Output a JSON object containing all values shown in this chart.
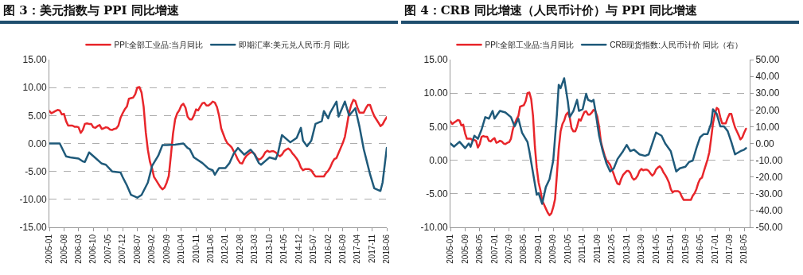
{
  "chart_data": [
    {
      "type": "line",
      "title": "图 3：美元指数与 PPI 同比增速",
      "legend": "top",
      "grid": "y",
      "xlim": [
        "2005-01",
        "2018-06"
      ],
      "xticks": [
        "2005-01",
        "2005-08",
        "2006-03",
        "2006-10",
        "2007-05",
        "2007-12",
        "2008-07",
        "2009-02",
        "2009-09",
        "2010-04",
        "2010-11",
        "2011-06",
        "2012-01",
        "2012-08",
        "2013-03",
        "2013-10",
        "2014-05",
        "2014-12",
        "2015-07",
        "2016-02",
        "2016-09",
        "2017-04",
        "2017-11",
        "2018-06"
      ],
      "ylim": [
        -15,
        15
      ],
      "yticks": [
        {
          "value": 15,
          "label": "15.00"
        },
        {
          "value": 10,
          "label": "10.00"
        },
        {
          "value": 5,
          "label": "5.00"
        },
        {
          "value": 0,
          "label": "0.00"
        },
        {
          "value": -5,
          "label": "-5.00"
        },
        {
          "value": -10,
          "label": "-10.00"
        },
        {
          "value": -15,
          "label": "-15.00"
        }
      ],
      "series": [
        {
          "name": "PPI:全部工业品:当月同比",
          "color": "#e8262b",
          "x": [
            "2005-01",
            "2005-02",
            "2005-03",
            "2005-04",
            "2005-05",
            "2005-06",
            "2005-07",
            "2005-08",
            "2005-09",
            "2005-10",
            "2005-11",
            "2005-12",
            "2006-01",
            "2006-02",
            "2006-03",
            "2006-04",
            "2006-05",
            "2006-06",
            "2006-07",
            "2006-08",
            "2006-09",
            "2006-10",
            "2006-11",
            "2006-12",
            "2007-01",
            "2007-02",
            "2007-03",
            "2007-04",
            "2007-05",
            "2007-06",
            "2007-07",
            "2007-08",
            "2007-09",
            "2007-10",
            "2007-11",
            "2007-12",
            "2008-01",
            "2008-02",
            "2008-03",
            "2008-04",
            "2008-05",
            "2008-06",
            "2008-07",
            "2008-08",
            "2008-09",
            "2008-10",
            "2008-11",
            "2008-12",
            "2009-01",
            "2009-02",
            "2009-03",
            "2009-04",
            "2009-05",
            "2009-06",
            "2009-07",
            "2009-08",
            "2009-09",
            "2009-10",
            "2009-11",
            "2009-12",
            "2010-01",
            "2010-02",
            "2010-03",
            "2010-04",
            "2010-05",
            "2010-06",
            "2010-07",
            "2010-08",
            "2010-09",
            "2010-10",
            "2010-11",
            "2010-12",
            "2011-01",
            "2011-02",
            "2011-03",
            "2011-04",
            "2011-05",
            "2011-06",
            "2011-07",
            "2011-08",
            "2011-09",
            "2011-10",
            "2011-11",
            "2011-12",
            "2012-01",
            "2012-02",
            "2012-03",
            "2012-04",
            "2012-05",
            "2012-06",
            "2012-07",
            "2012-08",
            "2012-09",
            "2012-10",
            "2012-11",
            "2012-12",
            "2013-01",
            "2013-02",
            "2013-03",
            "2013-04",
            "2013-05",
            "2013-06",
            "2013-07",
            "2013-08",
            "2013-09",
            "2013-10",
            "2013-11",
            "2013-12",
            "2014-01",
            "2014-02",
            "2014-03",
            "2014-04",
            "2014-05",
            "2014-06",
            "2014-07",
            "2014-08",
            "2014-09",
            "2014-10",
            "2014-11",
            "2014-12",
            "2015-01",
            "2015-02",
            "2015-03",
            "2015-04",
            "2015-05",
            "2015-06",
            "2015-07",
            "2015-08",
            "2015-09",
            "2015-10",
            "2015-11",
            "2015-12",
            "2016-01",
            "2016-02",
            "2016-03",
            "2016-04",
            "2016-05",
            "2016-06",
            "2016-07",
            "2016-08",
            "2016-09",
            "2016-10",
            "2016-11",
            "2016-12",
            "2017-01",
            "2017-02",
            "2017-03",
            "2017-04",
            "2017-05",
            "2017-06",
            "2017-07",
            "2017-08",
            "2017-09",
            "2017-10",
            "2017-11",
            "2017-12",
            "2018-01",
            "2018-02",
            "2018-03",
            "2018-04",
            "2018-05",
            "2018-06"
          ],
          "values": [
            5.8,
            5.4,
            5.6,
            5.8,
            6.0,
            5.9,
            5.2,
            5.3,
            4.0,
            3.2,
            3.2,
            3.2,
            3.0,
            3.0,
            2.9,
            1.9,
            2.4,
            3.5,
            3.6,
            3.5,
            3.5,
            2.9,
            2.8,
            3.1,
            3.3,
            2.6,
            2.7,
            2.9,
            2.8,
            2.5,
            2.4,
            2.6,
            2.7,
            3.2,
            4.6,
            5.4,
            6.1,
            6.6,
            8.0,
            8.1,
            8.2,
            8.8,
            10.0,
            10.1,
            9.1,
            6.6,
            2.0,
            -1.1,
            -3.3,
            -4.5,
            -6.0,
            -6.6,
            -7.2,
            -7.8,
            -8.2,
            -7.9,
            -7.0,
            -5.8,
            -2.1,
            1.7,
            4.3,
            5.4,
            5.9,
            6.8,
            7.1,
            6.4,
            4.8,
            4.3,
            4.3,
            5.0,
            6.1,
            5.9,
            6.6,
            7.2,
            7.3,
            6.8,
            6.8,
            7.1,
            7.5,
            7.3,
            6.5,
            5.0,
            2.7,
            1.7,
            0.7,
            0.0,
            -0.3,
            -0.7,
            -1.4,
            -2.1,
            -2.9,
            -3.5,
            -3.6,
            -2.8,
            -2.2,
            -1.9,
            -1.6,
            -1.6,
            -1.9,
            -2.6,
            -2.9,
            -2.7,
            -2.3,
            -1.6,
            -1.3,
            -1.5,
            -1.4,
            -1.4,
            -1.6,
            -2.0,
            -2.3,
            -2.0,
            -1.4,
            -1.1,
            -0.9,
            -1.2,
            -1.8,
            -2.2,
            -2.7,
            -3.3,
            -4.3,
            -4.8,
            -4.6,
            -4.6,
            -4.6,
            -4.8,
            -5.4,
            -5.9,
            -5.9,
            -5.9,
            -5.9,
            -5.9,
            -5.3,
            -4.9,
            -4.3,
            -3.4,
            -2.8,
            -2.6,
            -1.7,
            -0.8,
            0.1,
            1.2,
            3.3,
            5.5,
            6.9,
            7.8,
            7.6,
            6.4,
            5.5,
            5.5,
            5.5,
            6.3,
            6.9,
            6.9,
            5.8,
            4.9,
            4.3,
            3.7,
            3.1,
            3.4,
            4.1,
            4.7
          ]
        },
        {
          "name": "即期汇率:美元兑人民币:月 同比",
          "color": "#1f5a7a",
          "x": [
            "2005-01",
            "2005-06",
            "2005-09",
            "2005-11",
            "2006-03",
            "2006-05",
            "2006-06",
            "2006-08",
            "2006-11",
            "2007-02",
            "2007-04",
            "2007-07",
            "2007-11",
            "2007-12",
            "2008-02",
            "2008-04",
            "2008-07",
            "2008-09",
            "2008-12",
            "2009-02",
            "2009-05",
            "2009-07",
            "2009-09",
            "2010-01",
            "2010-05",
            "2010-07",
            "2010-08",
            "2010-10",
            "2011-02",
            "2011-05",
            "2011-07",
            "2011-08",
            "2011-10",
            "2012-01",
            "2012-03",
            "2012-05",
            "2012-07",
            "2012-10",
            "2013-01",
            "2013-03",
            "2013-05",
            "2013-06",
            "2013-10",
            "2014-01",
            "2014-02",
            "2014-04",
            "2014-08",
            "2014-11",
            "2015-01",
            "2015-02",
            "2015-04",
            "2015-06",
            "2015-08",
            "2015-11",
            "2015-12",
            "2016-02",
            "2016-03",
            "2016-06",
            "2016-07",
            "2016-10",
            "2016-12",
            "2017-03",
            "2017-05",
            "2017-07",
            "2017-08",
            "2017-10",
            "2017-12",
            "2018-03",
            "2018-04",
            "2018-06"
          ],
          "values": [
            0,
            0,
            -2.3,
            -2.5,
            -2.7,
            -3.2,
            -3.3,
            -1.6,
            -2.6,
            -3.6,
            -3.8,
            -5.0,
            -5.2,
            -6.0,
            -7.5,
            -9.2,
            -9.7,
            -9.2,
            -7.0,
            -4.0,
            -2.2,
            -0.3,
            -0.3,
            -0.2,
            0.0,
            -0.8,
            -1.0,
            -2.5,
            -3.5,
            -4.5,
            -4.8,
            -5.6,
            -4.4,
            -4.4,
            -3.5,
            -1.8,
            -0.8,
            -2.0,
            -1.1,
            -2.0,
            -3.5,
            -3.8,
            -2.5,
            -2.8,
            -1.8,
            1.5,
            0.2,
            1.0,
            2.8,
            0.5,
            -0.5,
            0.5,
            3.5,
            4.0,
            5.8,
            4.5,
            5.5,
            7.5,
            4.8,
            7.5,
            5.0,
            6.3,
            3.0,
            -1.0,
            -2.5,
            -5.5,
            -8.0,
            -8.5,
            -7.0,
            -0.8
          ]
        }
      ]
    },
    {
      "type": "line",
      "title": "图 4：CRB 同比增速（人民币计价）与 PPI 同比增速",
      "legend": "top",
      "grid": "y",
      "xlim": [
        "2005-01",
        "2018-08"
      ],
      "xticks": [
        "2005-01",
        "2005-09",
        "2006-05",
        "2007-01",
        "2007-09",
        "2008-05",
        "2009-01",
        "2009-09",
        "2010-05",
        "2011-01",
        "2011-09",
        "2012-05",
        "2013-01",
        "2013-09",
        "2014-05",
        "2015-01",
        "2015-09",
        "2016-05",
        "2017-01",
        "2017-09",
        "2018-05"
      ],
      "ylim": [
        -10,
        15
      ],
      "yticks": [
        {
          "value": 15,
          "label": "15.00"
        },
        {
          "value": 10,
          "label": "10.00"
        },
        {
          "value": 5,
          "label": "5.00"
        },
        {
          "value": 0,
          "label": "0.00"
        },
        {
          "value": -5,
          "label": "-5.00"
        },
        {
          "value": -10,
          "label": "-10.00"
        }
      ],
      "y2lim": [
        -50,
        50
      ],
      "y2ticks": [
        {
          "value": 50,
          "label": "50.00"
        },
        {
          "value": 40,
          "label": "40.00"
        },
        {
          "value": 30,
          "label": "30.00"
        },
        {
          "value": 20,
          "label": "20.00"
        },
        {
          "value": 10,
          "label": "10.00"
        },
        {
          "value": 0,
          "label": "0.00"
        },
        {
          "value": -10,
          "label": "-10.00"
        },
        {
          "value": -20,
          "label": "-20.00"
        },
        {
          "value": -30,
          "label": "-30.00"
        },
        {
          "value": -40,
          "label": "-40.00"
        },
        {
          "value": -50,
          "label": "-50.00"
        }
      ],
      "series": [
        {
          "name": "PPI:全部工业品:当月同比",
          "color": "#e8262b",
          "x": [
            "2005-01",
            "2005-02",
            "2005-03",
            "2005-04",
            "2005-05",
            "2005-06",
            "2005-07",
            "2005-08",
            "2005-09",
            "2005-10",
            "2005-11",
            "2005-12",
            "2006-01",
            "2006-02",
            "2006-03",
            "2006-04",
            "2006-05",
            "2006-06",
            "2006-07",
            "2006-08",
            "2006-09",
            "2006-10",
            "2006-11",
            "2006-12",
            "2007-01",
            "2007-02",
            "2007-03",
            "2007-04",
            "2007-05",
            "2007-06",
            "2007-07",
            "2007-08",
            "2007-09",
            "2007-10",
            "2007-11",
            "2007-12",
            "2008-01",
            "2008-02",
            "2008-03",
            "2008-04",
            "2008-05",
            "2008-06",
            "2008-07",
            "2008-08",
            "2008-09",
            "2008-10",
            "2008-11",
            "2008-12",
            "2009-01",
            "2009-02",
            "2009-03",
            "2009-04",
            "2009-05",
            "2009-06",
            "2009-07",
            "2009-08",
            "2009-09",
            "2009-10",
            "2009-11",
            "2009-12",
            "2010-01",
            "2010-02",
            "2010-03",
            "2010-04",
            "2010-05",
            "2010-06",
            "2010-07",
            "2010-08",
            "2010-09",
            "2010-10",
            "2010-11",
            "2010-12",
            "2011-01",
            "2011-02",
            "2011-03",
            "2011-04",
            "2011-05",
            "2011-06",
            "2011-07",
            "2011-08",
            "2011-09",
            "2011-10",
            "2011-11",
            "2011-12",
            "2012-01",
            "2012-02",
            "2012-03",
            "2012-04",
            "2012-05",
            "2012-06",
            "2012-07",
            "2012-08",
            "2012-09",
            "2012-10",
            "2012-11",
            "2012-12",
            "2013-01",
            "2013-02",
            "2013-03",
            "2013-04",
            "2013-05",
            "2013-06",
            "2013-07",
            "2013-08",
            "2013-09",
            "2013-10",
            "2013-11",
            "2013-12",
            "2014-01",
            "2014-02",
            "2014-03",
            "2014-04",
            "2014-05",
            "2014-06",
            "2014-07",
            "2014-08",
            "2014-09",
            "2014-10",
            "2014-11",
            "2014-12",
            "2015-01",
            "2015-02",
            "2015-03",
            "2015-04",
            "2015-05",
            "2015-06",
            "2015-07",
            "2015-08",
            "2015-09",
            "2015-10",
            "2015-11",
            "2015-12",
            "2016-01",
            "2016-02",
            "2016-03",
            "2016-04",
            "2016-05",
            "2016-06",
            "2016-07",
            "2016-08",
            "2016-09",
            "2016-10",
            "2016-11",
            "2016-12",
            "2017-01",
            "2017-02",
            "2017-03",
            "2017-04",
            "2017-05",
            "2017-06",
            "2017-07",
            "2017-08",
            "2017-09",
            "2017-10",
            "2017-11",
            "2017-12",
            "2018-01",
            "2018-02",
            "2018-03",
            "2018-04",
            "2018-05",
            "2018-06"
          ],
          "values": [
            5.8,
            5.4,
            5.6,
            5.8,
            6.0,
            5.9,
            5.2,
            5.3,
            4.0,
            3.2,
            3.2,
            3.2,
            3.0,
            3.0,
            2.9,
            1.9,
            2.4,
            3.5,
            3.6,
            3.5,
            3.5,
            2.9,
            2.8,
            3.1,
            3.3,
            2.6,
            2.7,
            2.9,
            2.8,
            2.5,
            2.4,
            2.6,
            2.7,
            3.2,
            4.6,
            5.4,
            6.1,
            6.6,
            8.0,
            8.1,
            8.2,
            8.8,
            10.0,
            10.1,
            9.1,
            6.6,
            2.0,
            -1.1,
            -3.3,
            -4.5,
            -6.0,
            -6.6,
            -7.2,
            -7.8,
            -8.2,
            -7.9,
            -7.0,
            -5.8,
            -2.1,
            1.7,
            4.3,
            5.4,
            5.9,
            6.8,
            7.1,
            6.4,
            4.8,
            4.3,
            4.3,
            5.0,
            6.1,
            5.9,
            6.6,
            7.2,
            7.3,
            6.8,
            6.8,
            7.1,
            7.5,
            7.3,
            6.5,
            5.0,
            2.7,
            1.7,
            0.7,
            0.0,
            -0.3,
            -0.7,
            -1.4,
            -2.1,
            -2.9,
            -3.5,
            -3.6,
            -2.8,
            -2.2,
            -1.9,
            -1.6,
            -1.6,
            -1.9,
            -2.6,
            -2.9,
            -2.7,
            -2.3,
            -1.6,
            -1.3,
            -1.5,
            -1.4,
            -1.4,
            -1.6,
            -2.0,
            -2.3,
            -2.0,
            -1.4,
            -1.1,
            -0.9,
            -1.2,
            -1.8,
            -2.2,
            -2.7,
            -3.3,
            -4.3,
            -4.8,
            -4.6,
            -4.6,
            -4.6,
            -4.8,
            -5.4,
            -5.9,
            -5.9,
            -5.9,
            -5.9,
            -5.9,
            -5.3,
            -4.9,
            -4.3,
            -3.4,
            -2.8,
            -2.6,
            -1.7,
            -0.8,
            0.1,
            1.2,
            3.3,
            5.5,
            6.9,
            7.8,
            7.6,
            6.4,
            5.5,
            5.5,
            5.5,
            6.3,
            6.9,
            6.9,
            5.8,
            4.9,
            4.3,
            3.7,
            3.1,
            3.4,
            4.1,
            4.7
          ]
        },
        {
          "name": "CRB现货指数:人民币计价 同比（右）",
          "color": "#1f5a7a",
          "axis": "y2",
          "x": [
            "2005-01",
            "2005-03",
            "2005-06",
            "2005-09",
            "2005-11",
            "2005-12",
            "2006-02",
            "2006-04",
            "2006-06",
            "2006-08",
            "2006-10",
            "2006-12",
            "2007-01",
            "2007-04",
            "2007-07",
            "2007-10",
            "2007-12",
            "2008-02",
            "2008-04",
            "2008-07",
            "2008-08",
            "2008-10",
            "2008-12",
            "2009-01",
            "2009-03",
            "2009-05",
            "2009-07",
            "2009-09",
            "2009-11",
            "2009-12",
            "2010-01",
            "2010-03",
            "2010-05",
            "2010-06",
            "2010-08",
            "2010-10",
            "2010-11",
            "2011-01",
            "2011-03",
            "2011-04",
            "2011-06",
            "2011-07",
            "2011-08",
            "2011-10",
            "2011-12",
            "2012-02",
            "2012-04",
            "2012-06",
            "2012-08",
            "2012-11",
            "2013-01",
            "2013-03",
            "2013-05",
            "2013-08",
            "2013-11",
            "2014-01",
            "2014-05",
            "2014-08",
            "2014-10",
            "2015-01",
            "2015-04",
            "2015-06",
            "2015-09",
            "2015-11",
            "2016-01",
            "2016-03",
            "2016-05",
            "2016-07",
            "2016-09",
            "2016-11",
            "2016-12",
            "2017-02",
            "2017-04",
            "2017-06",
            "2017-08",
            "2017-10",
            "2017-12",
            "2018-03",
            "2018-05",
            "2018-06"
          ],
          "values": [
            0,
            -1.9,
            1,
            -2.8,
            0,
            -2,
            4.6,
            2.8,
            8.3,
            15.7,
            14.8,
            19.4,
            14.8,
            19.4,
            18.5,
            15.7,
            10.2,
            14.8,
            6.5,
            0.9,
            -4.6,
            -17.6,
            -30.6,
            -29.6,
            -36,
            -26,
            -21.3,
            -10.2,
            17.6,
            35,
            33,
            38.9,
            25,
            15.7,
            19.4,
            26,
            19.4,
            20.4,
            29.6,
            26,
            25,
            26,
            19.4,
            4.6,
            -4.6,
            -12,
            -16.7,
            -14.8,
            -9.3,
            -4.6,
            -0.9,
            -4.6,
            -3.7,
            -6.5,
            -7.4,
            -6.5,
            6.5,
            4.6,
            0,
            -4.6,
            -16.7,
            -14.8,
            -13.9,
            -11,
            -10.2,
            -2.8,
            3.7,
            5.6,
            5.6,
            12,
            20.4,
            17.6,
            10.2,
            10.2,
            7.4,
            0.9,
            -6.5,
            -4.6,
            -3.7,
            -2.8
          ]
        }
      ]
    }
  ]
}
